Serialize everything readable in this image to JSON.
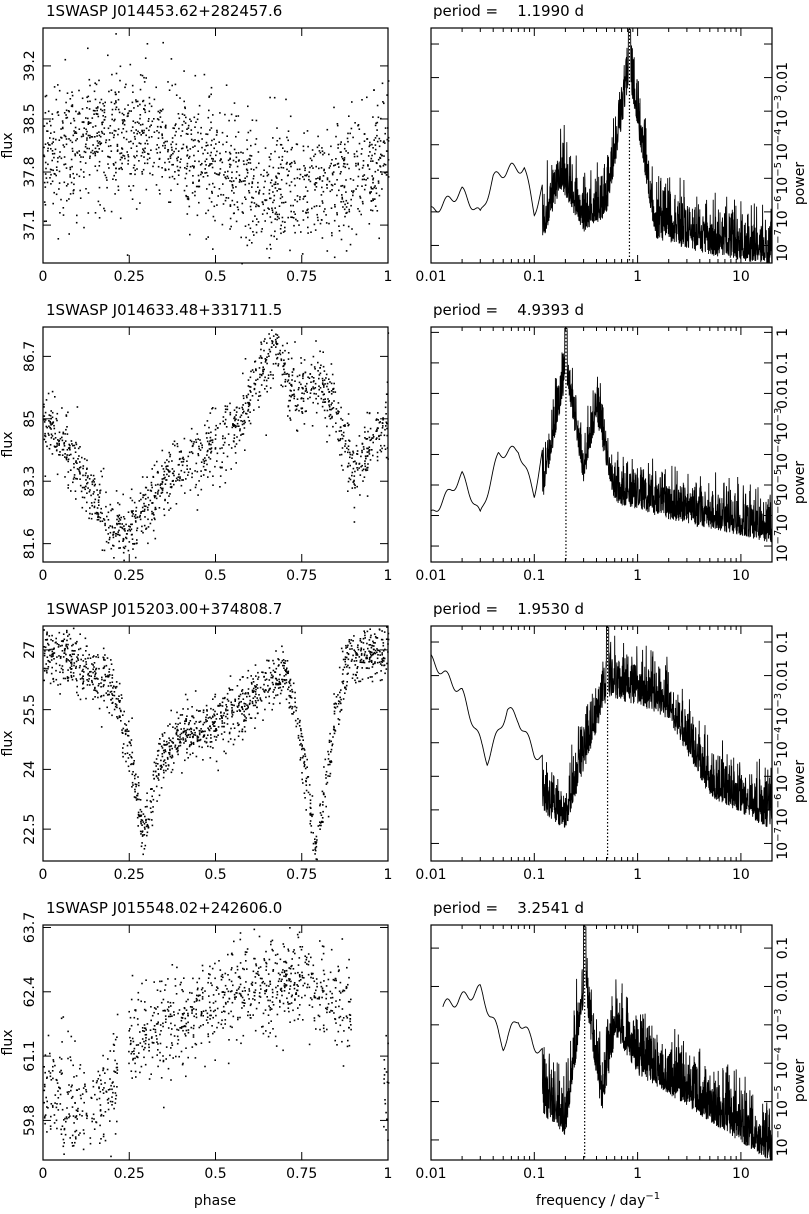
{
  "figure": {
    "xlabel_phase": "phase",
    "xlabel_freq": "frequency / day",
    "xlabel_freq_sup": "−1",
    "ylabel_flux": "flux",
    "ylabel_power": "power"
  },
  "chart_data": [
    {
      "type": "scatter",
      "star": "1SWASP J014453.62+282457.6",
      "title": "1SWASP J014453.62+282457.6",
      "xlabel": "phase",
      "ylabel": "flux",
      "xlim": [
        0,
        1
      ],
      "ylim": [
        36.6,
        39.7
      ],
      "x_ticks": [
        0,
        0.25,
        0.5,
        0.75,
        1
      ],
      "x_tick_labels": [
        "0",
        "0.25",
        "0.5",
        "0.75",
        "1"
      ],
      "y_ticks": [
        37.1,
        37.8,
        38.5,
        39.2
      ],
      "y_tick_labels": [
        "37.1",
        "37.8",
        "38.5",
        "39.2"
      ],
      "curve": [
        [
          0.0,
          38.0
        ],
        [
          0.15,
          38.3
        ],
        [
          0.3,
          38.3
        ],
        [
          0.45,
          38.0
        ],
        [
          0.55,
          37.75
        ],
        [
          0.65,
          37.55
        ],
        [
          0.8,
          37.6
        ],
        [
          0.92,
          37.85
        ],
        [
          1.0,
          38.1
        ]
      ],
      "scatter_sigma": 0.42,
      "n_points": 1500
    },
    {
      "type": "line",
      "title": "period =    1.1990 d",
      "period_days": 1.199,
      "xlabel": "frequency / day−1",
      "ylabel": "power",
      "xscale": "log",
      "yscale": "log",
      "xlim": [
        0.01,
        20
      ],
      "ylim": [
        3e-08,
        0.3
      ],
      "x_ticks": [
        0.01,
        0.1,
        1,
        10
      ],
      "x_tick_labels": [
        "0.01",
        "0.1",
        "1",
        "10"
      ],
      "y_ticks": [
        1e-07,
        1e-06,
        1e-05,
        0.0001,
        0.001,
        0.01
      ],
      "y_tick_labels": [
        "10−7",
        "10−6",
        "10−5",
        "10−4",
        "10−3",
        "0.01"
      ],
      "peak_frequency": 0.834,
      "spectrum_envelope": [
        [
          0.01,
          1e-06
        ],
        [
          0.02,
          4e-06
        ],
        [
          0.03,
          8e-07
        ],
        [
          0.04,
          1e-05
        ],
        [
          0.06,
          2e-05
        ],
        [
          0.08,
          2e-05
        ],
        [
          0.1,
          1e-06
        ],
        [
          0.18,
          0.0002
        ],
        [
          0.3,
          1e-05
        ],
        [
          0.5,
          3e-05
        ],
        [
          0.834,
          0.3
        ],
        [
          1.5,
          6e-06
        ],
        [
          5,
          2e-06
        ],
        [
          20,
          1e-06
        ]
      ]
    },
    {
      "type": "scatter",
      "title": "1SWASP J014633.48+331711.5",
      "xlabel": "phase",
      "ylabel": "flux",
      "xlim": [
        0,
        1
      ],
      "ylim": [
        81.1,
        87.5
      ],
      "x_ticks": [
        0,
        0.25,
        0.5,
        0.75,
        1
      ],
      "x_tick_labels": [
        "0",
        "0.25",
        "0.5",
        "0.75",
        "1"
      ],
      "y_ticks": [
        81.6,
        83.3,
        85,
        86.7
      ],
      "y_tick_labels": [
        "81.6",
        "83.3",
        "85",
        "86.7"
      ],
      "curve": [
        [
          0.0,
          85.0
        ],
        [
          0.08,
          84.0
        ],
        [
          0.2,
          82.0
        ],
        [
          0.27,
          82.2
        ],
        [
          0.35,
          83.5
        ],
        [
          0.45,
          84.0
        ],
        [
          0.55,
          84.8
        ],
        [
          0.63,
          86.3
        ],
        [
          0.67,
          87.0
        ],
        [
          0.73,
          85.6
        ],
        [
          0.78,
          86.2
        ],
        [
          0.82,
          85.9
        ],
        [
          0.9,
          83.6
        ],
        [
          1.0,
          85.0
        ]
      ],
      "scatter_sigma": 0.45,
      "n_points": 1300
    },
    {
      "type": "line",
      "title": "period =    4.9393 d",
      "period_days": 4.9393,
      "xlabel": "frequency / day−1",
      "ylabel": "power",
      "xscale": "log",
      "yscale": "log",
      "xlim": [
        0.01,
        20
      ],
      "ylim": [
        3e-08,
        1.5
      ],
      "x_ticks": [
        0.01,
        0.1,
        1,
        10
      ],
      "x_tick_labels": [
        "0.01",
        "0.1",
        "1",
        "10"
      ],
      "y_ticks": [
        1e-07,
        1e-06,
        1e-05,
        0.0001,
        0.001,
        0.01,
        0.1,
        1
      ],
      "y_tick_labels": [
        "10−7",
        "10−6",
        "10−5",
        "10−4",
        "10−3",
        "0.01",
        "0.1",
        "1"
      ],
      "peak_frequency": 0.2025,
      "spectrum_envelope": [
        [
          0.01,
          1e-06
        ],
        [
          0.02,
          2e-05
        ],
        [
          0.03,
          1e-06
        ],
        [
          0.045,
          0.0001
        ],
        [
          0.07,
          0.00015
        ],
        [
          0.1,
          5e-06
        ],
        [
          0.2025,
          1.0
        ],
        [
          0.3,
          0.0005
        ],
        [
          0.4,
          0.05
        ],
        [
          0.6,
          0.0001
        ],
        [
          2,
          3e-05
        ],
        [
          20,
          5e-06
        ]
      ]
    },
    {
      "type": "scatter",
      "title": "1SWASP J015203.00+374808.7",
      "xlabel": "phase",
      "ylabel": "flux",
      "xlim": [
        0,
        1
      ],
      "ylim": [
        21.7,
        27.6
      ],
      "x_ticks": [
        0,
        0.25,
        0.5,
        0.75,
        1
      ],
      "x_tick_labels": [
        "0",
        "0.25",
        "0.5",
        "0.75",
        "1"
      ],
      "y_ticks": [
        22.5,
        24,
        25.5,
        27
      ],
      "y_tick_labels": [
        "22.5",
        "24",
        "25.5",
        "27"
      ],
      "curve": [
        [
          0.0,
          27.0
        ],
        [
          0.1,
          26.7
        ],
        [
          0.2,
          26.0
        ],
        [
          0.25,
          24.5
        ],
        [
          0.29,
          22.3
        ],
        [
          0.33,
          24.0
        ],
        [
          0.4,
          24.9
        ],
        [
          0.5,
          25.2
        ],
        [
          0.6,
          25.8
        ],
        [
          0.7,
          26.5
        ],
        [
          0.74,
          25.0
        ],
        [
          0.79,
          21.9
        ],
        [
          0.84,
          25.0
        ],
        [
          0.88,
          26.8
        ],
        [
          1.0,
          27.0
        ]
      ],
      "scatter_sigma": 0.35,
      "n_points": 1500
    },
    {
      "type": "line",
      "title": "period =    1.9530 d",
      "period_days": 1.953,
      "xlabel": "frequency / day−1",
      "ylabel": "power",
      "xscale": "log",
      "yscale": "log",
      "xlim": [
        0.01,
        20
      ],
      "ylim": [
        3e-08,
        0.3
      ],
      "x_ticks": [
        0.01,
        0.1,
        1,
        10
      ],
      "x_tick_labels": [
        "0.01",
        "0.1",
        "1",
        "10"
      ],
      "y_ticks": [
        1e-07,
        1e-06,
        1e-05,
        0.0001,
        0.001,
        0.01,
        0.1
      ],
      "y_tick_labels": [
        "10−7",
        "10−6",
        "10−5",
        "10−4",
        "10−3",
        "0.01",
        "0.1"
      ],
      "peak_frequency": 0.512,
      "spectrum_envelope": [
        [
          0.01,
          0.03
        ],
        [
          0.02,
          0.003
        ],
        [
          0.035,
          3e-05
        ],
        [
          0.055,
          0.001
        ],
        [
          0.07,
          0.0005
        ],
        [
          0.1,
          5e-05
        ],
        [
          0.2,
          1e-05
        ],
        [
          0.512,
          0.1
        ],
        [
          1,
          0.05
        ],
        [
          2,
          0.02
        ],
        [
          5,
          0.0001
        ],
        [
          20,
          1e-05
        ]
      ]
    },
    {
      "type": "scatter",
      "title": "1SWASP J015548.02+242606.0",
      "xlabel": "phase",
      "ylabel": "flux",
      "xlim": [
        0,
        1
      ],
      "ylim": [
        59.0,
        63.75
      ],
      "x_ticks": [
        0,
        0.25,
        0.5,
        0.75,
        1
      ],
      "x_tick_labels": [
        "0",
        "0.25",
        "0.5",
        "0.75",
        "1"
      ],
      "y_ticks": [
        59.8,
        61.1,
        62.4,
        63.7
      ],
      "y_tick_labels": [
        "59.8",
        "61.1",
        "62.4",
        "63.7"
      ],
      "curve": [
        [
          0.0,
          60.4
        ],
        [
          0.1,
          60.1
        ],
        [
          0.18,
          60.2
        ],
        [
          0.25,
          61.4
        ],
        [
          0.4,
          61.8
        ],
        [
          0.55,
          62.4
        ],
        [
          0.75,
          62.7
        ],
        [
          0.9,
          62.0
        ],
        [
          0.92,
          60.7
        ],
        [
          1.0,
          60.5
        ]
      ],
      "gaps": [
        [
          0.215,
          0.245
        ],
        [
          0.895,
          0.985
        ]
      ],
      "scatter_sigma": 0.5,
      "n_points": 1200
    },
    {
      "type": "line",
      "title": "period =    3.2541 d",
      "period_days": 3.2541,
      "xlabel": "frequency / day−1",
      "ylabel": "power",
      "xscale": "log",
      "yscale": "log",
      "xlim": [
        0.01,
        20
      ],
      "ylim": [
        3e-07,
        0.4
      ],
      "x_ticks": [
        0.01,
        0.1,
        1,
        10
      ],
      "x_tick_labels": [
        "0.01",
        "0.1",
        "1",
        "10"
      ],
      "y_ticks": [
        1e-06,
        1e-05,
        0.0001,
        0.001,
        0.01,
        0.1
      ],
      "y_tick_labels": [
        "10−6",
        "10−5",
        "10−4",
        "10−3",
        "0.01",
        "0.1"
      ],
      "peak_frequency": 0.3073,
      "spectrum_envelope": [
        [
          0.013,
          0.003
        ],
        [
          0.03,
          0.008
        ],
        [
          0.05,
          0.0003
        ],
        [
          0.07,
          0.0015
        ],
        [
          0.1,
          0.0003
        ],
        [
          0.2,
          5e-05
        ],
        [
          0.3073,
          0.2
        ],
        [
          0.45,
          0.0002
        ],
        [
          0.62,
          0.02
        ],
        [
          1,
          0.002
        ],
        [
          3,
          0.0003
        ],
        [
          20,
          1e-05
        ]
      ]
    }
  ]
}
